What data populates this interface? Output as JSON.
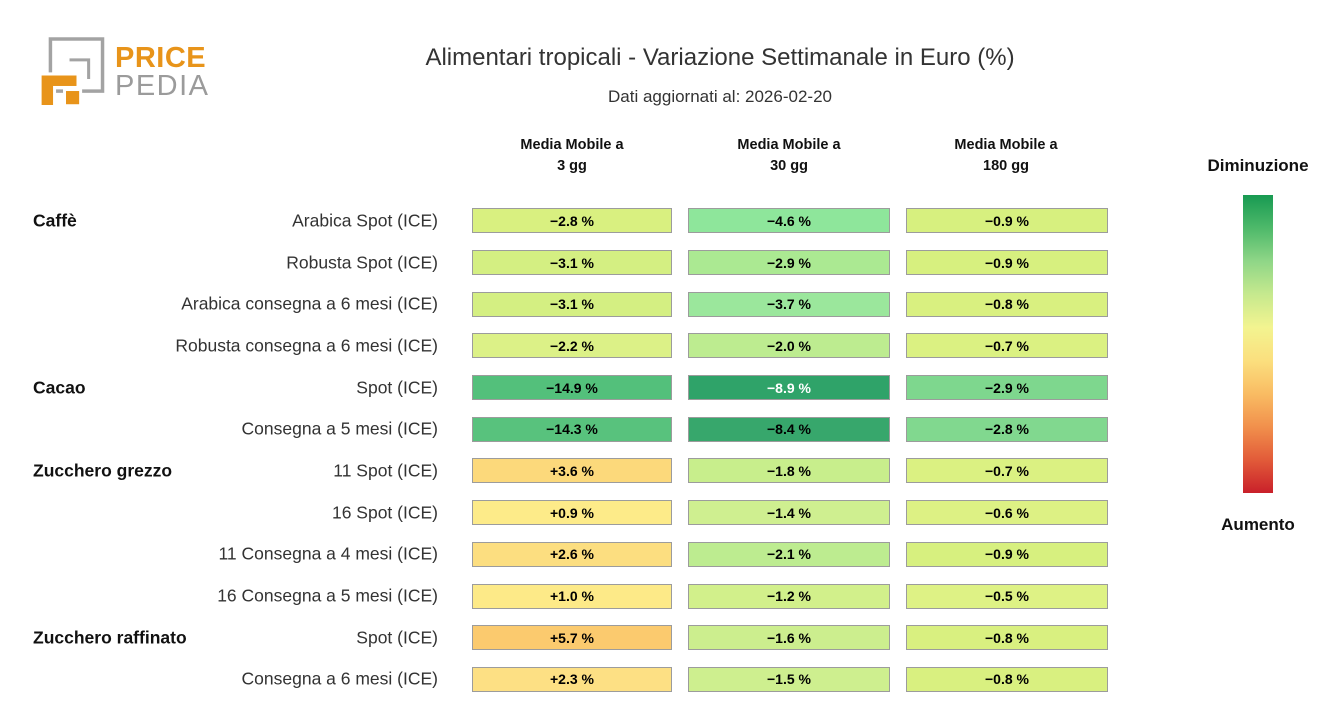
{
  "brand": {
    "orange": "#E8941A",
    "gray": "#9B9B9B",
    "logo_line1": "PRICE",
    "logo_line2": "PEDIA"
  },
  "header": {
    "title": "Alimentari tropicali - Variazione Settimanale in Euro (%)",
    "subtitle": "Dati aggiornati al: 2026-02-20"
  },
  "chart_data": {
    "type": "heatmap",
    "title": "Alimentari tropicali - Variazione Settimanale in Euro (%)",
    "subtitle": "Dati aggiornati al: 2026-02-20",
    "unit": "%",
    "columns": [
      "Media Mobile a\n3 gg",
      "Media Mobile a\n30 gg",
      "Media Mobile a\n180 gg"
    ],
    "rows": [
      {
        "group": "Caffè",
        "label": "Arabica Spot (ICE)",
        "values": [
          -2.8,
          -4.6,
          -0.9
        ],
        "display": [
          "−2.8 %",
          "−4.6 %",
          "−0.9 %"
        ],
        "colors": [
          "#d9f080",
          "#8ee69b",
          "#d7f07f"
        ],
        "text_colors": [
          "#000000",
          "#000000",
          "#000000"
        ]
      },
      {
        "group": "",
        "label": "Robusta Spot (ICE)",
        "values": [
          -3.1,
          -2.9,
          -0.9
        ],
        "display": [
          "−3.1 %",
          "−2.9 %",
          "−0.9 %"
        ],
        "colors": [
          "#d4ef82",
          "#abe992",
          "#d7f07f"
        ],
        "text_colors": [
          "#000000",
          "#000000",
          "#000000"
        ]
      },
      {
        "group": "",
        "label": "Arabica consegna a 6 mesi (ICE)",
        "values": [
          -3.1,
          -3.7,
          -0.8
        ],
        "display": [
          "−3.1 %",
          "−3.7 %",
          "−0.8 %"
        ],
        "colors": [
          "#d4ef82",
          "#9be79c",
          "#d9f080"
        ],
        "text_colors": [
          "#000000",
          "#000000",
          "#000000"
        ]
      },
      {
        "group": "",
        "label": "Robusta consegna a 6 mesi (ICE)",
        "values": [
          -2.2,
          -2.0,
          -0.7
        ],
        "display": [
          "−2.2 %",
          "−2.0 %",
          "−0.7 %"
        ],
        "colors": [
          "#dcf187",
          "#bdec90",
          "#dbf182"
        ],
        "text_colors": [
          "#000000",
          "#000000",
          "#000000"
        ]
      },
      {
        "group": "Cacao",
        "label": "Spot (ICE)",
        "values": [
          -14.9,
          -8.9,
          -2.9
        ],
        "display": [
          "−14.9 %",
          "−8.9 %",
          "−2.9 %"
        ],
        "colors": [
          "#53c07b",
          "#2fa369",
          "#7ed78e"
        ],
        "text_colors": [
          "#000000",
          "#ffffff",
          "#000000"
        ]
      },
      {
        "group": "",
        "label": "Consegna a 5 mesi (ICE)",
        "values": [
          -14.3,
          -8.4,
          -2.8
        ],
        "display": [
          "−14.3 %",
          "−8.4 %",
          "−2.8 %"
        ],
        "colors": [
          "#58c27d",
          "#37a76c",
          "#81d88f"
        ],
        "text_colors": [
          "#000000",
          "#000000",
          "#000000"
        ]
      },
      {
        "group": "Zucchero grezzo",
        "label": "11 Spot (ICE)",
        "values": [
          3.6,
          -1.8,
          -0.7
        ],
        "display": [
          "+3.6 %",
          "−1.8 %",
          "−0.7 %"
        ],
        "colors": [
          "#fcd97b",
          "#c8ee8c",
          "#dbf182"
        ],
        "text_colors": [
          "#000000",
          "#000000",
          "#000000"
        ]
      },
      {
        "group": "",
        "label": "16 Spot (ICE)",
        "values": [
          0.9,
          -1.4,
          -0.6
        ],
        "display": [
          "+0.9 %",
          "−1.4 %",
          "−0.6 %"
        ],
        "colors": [
          "#fdeb89",
          "#cfef90",
          "#ddf184"
        ],
        "text_colors": [
          "#000000",
          "#000000",
          "#000000"
        ]
      },
      {
        "group": "",
        "label": "11 Consegna a 4 mesi (ICE)",
        "values": [
          2.6,
          -2.1,
          -0.9
        ],
        "display": [
          "+2.6 %",
          "−2.1 %",
          "−0.9 %"
        ],
        "colors": [
          "#fcde80",
          "#bdec90",
          "#d7f07f"
        ],
        "text_colors": [
          "#000000",
          "#000000",
          "#000000"
        ]
      },
      {
        "group": "",
        "label": "16 Consegna a 5 mesi (ICE)",
        "values": [
          1.0,
          -1.2,
          -0.5
        ],
        "display": [
          "+1.0 %",
          "−1.2 %",
          "−0.5 %"
        ],
        "colors": [
          "#fdea88",
          "#d2f08b",
          "#def285"
        ],
        "text_colors": [
          "#000000",
          "#000000",
          "#000000"
        ]
      },
      {
        "group": "Zucchero raffinato",
        "label": "Spot (ICE)",
        "values": [
          5.7,
          -1.6,
          -0.8
        ],
        "display": [
          "+5.7 %",
          "−1.6 %",
          "−0.8 %"
        ],
        "colors": [
          "#fbca6e",
          "#ccee8e",
          "#d9f080"
        ],
        "text_colors": [
          "#000000",
          "#000000",
          "#000000"
        ]
      },
      {
        "group": "",
        "label": "Consegna a 6 mesi (ICE)",
        "values": [
          2.3,
          -1.5,
          -0.8
        ],
        "display": [
          "+2.3 %",
          "−1.5 %",
          "−0.8 %"
        ],
        "colors": [
          "#fde084",
          "#ceef8f",
          "#d9f080"
        ],
        "text_colors": [
          "#000000",
          "#000000",
          "#000000"
        ]
      }
    ],
    "legend": {
      "top_label": "Diminuzione",
      "bottom_label": "Aumento",
      "gradient_top_to_bottom": [
        "#189a52",
        "#4eb96a",
        "#8fd687",
        "#c6e98e",
        "#f3f490",
        "#fbdf7e",
        "#f9bc63",
        "#f1904c",
        "#e25b39",
        "#c9202a"
      ]
    },
    "layout": {
      "legend_position": "right",
      "grid": false
    }
  }
}
